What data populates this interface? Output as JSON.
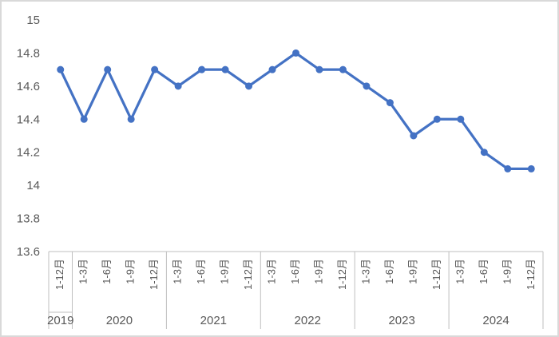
{
  "chart_data": {
    "type": "line",
    "title": "",
    "legend_position": "none",
    "gridlines": false,
    "marker": "circle",
    "line_color": "#4472C4",
    "axis_line_color": "#bfbfbf",
    "label_color": "#595959",
    "background_color": "#ffffff",
    "border_color": "#d9d9d9",
    "ylim": [
      13.6,
      15
    ],
    "y_tick_labels": [
      "15",
      "14.8",
      "14.6",
      "14.4",
      "14.2",
      "14",
      "13.8",
      "13.6"
    ],
    "y_ticks": [
      15,
      14.8,
      14.6,
      14.4,
      14.2,
      14,
      13.8,
      13.6
    ],
    "x_axis_groups": [
      {
        "year": "2019",
        "periods": [
          "1-12月"
        ],
        "values": [
          14.7
        ]
      },
      {
        "year": "2020",
        "periods": [
          "1-3月",
          "1-6月",
          "1-9月",
          "1-12月"
        ],
        "values": [
          14.4,
          14.7,
          14.4,
          14.7
        ]
      },
      {
        "year": "2021",
        "periods": [
          "1-3月",
          "1-6月",
          "1-9月",
          "1-12月"
        ],
        "values": [
          14.6,
          14.7,
          14.7,
          14.6
        ]
      },
      {
        "year": "2022",
        "periods": [
          "1-3月",
          "1-6月",
          "1-9月",
          "1-12月"
        ],
        "values": [
          14.7,
          14.8,
          14.7,
          14.7
        ]
      },
      {
        "year": "2023",
        "periods": [
          "1-3月",
          "1-6月",
          "1-9月",
          "1-12月"
        ],
        "values": [
          14.6,
          14.5,
          14.3,
          14.4
        ]
      },
      {
        "year": "2024",
        "periods": [
          "1-3月",
          "1-6月",
          "1-9月",
          "1-12月"
        ],
        "values": [
          14.4,
          14.2,
          14.1,
          14.1
        ]
      }
    ]
  }
}
